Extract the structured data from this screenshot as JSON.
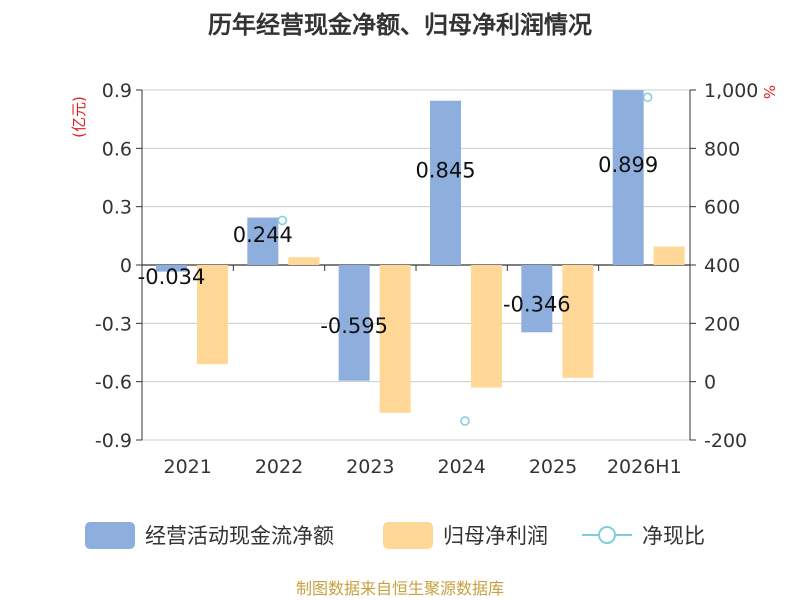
{
  "chart_data": {
    "type": "bar",
    "title": "历年经营现金净额、归母净利润情况",
    "categories": [
      "2021",
      "2022",
      "2023",
      "2024",
      "2025",
      "2026H1"
    ],
    "left_axis": {
      "unit": "(亿元)",
      "ylim": [
        -0.9,
        0.9
      ],
      "ticks": [
        0.9,
        0.6,
        0.3,
        0,
        -0.3,
        -0.6,
        -0.9
      ],
      "tick_labels": [
        "0.9",
        "0.6",
        "0.3",
        "0",
        "-0.3",
        "-0.6",
        "-0.9"
      ]
    },
    "right_axis": {
      "unit": "%",
      "ylim": [
        -200,
        1000
      ],
      "ticks": [
        1000,
        800,
        600,
        400,
        200,
        0,
        -200
      ],
      "tick_labels": [
        "1,000",
        "800",
        "600",
        "400",
        "200",
        "0",
        "-200"
      ]
    },
    "series": [
      {
        "name": "经营活动现金流净额",
        "type": "bar",
        "axis": "left",
        "color": "#8eaedd",
        "values": [
          -0.034,
          0.244,
          -0.595,
          0.845,
          -0.346,
          0.899
        ],
        "labels": [
          "-0.034",
          "0.244",
          "-0.595",
          "0.845",
          "-0.346",
          "0.899"
        ]
      },
      {
        "name": "归母净利润",
        "type": "bar",
        "axis": "left",
        "color": "#ffd897",
        "values": [
          -0.51,
          0.04,
          -0.76,
          -0.63,
          -0.58,
          0.095
        ]
      },
      {
        "name": "净现比",
        "type": "scatter",
        "axis": "right",
        "color": "#7ccfdb",
        "values": [
          null,
          553,
          null,
          -135,
          null,
          975
        ]
      }
    ],
    "grid": true,
    "legend_position": "bottom"
  },
  "source_note": "制图数据来自恒生聚源数据库"
}
